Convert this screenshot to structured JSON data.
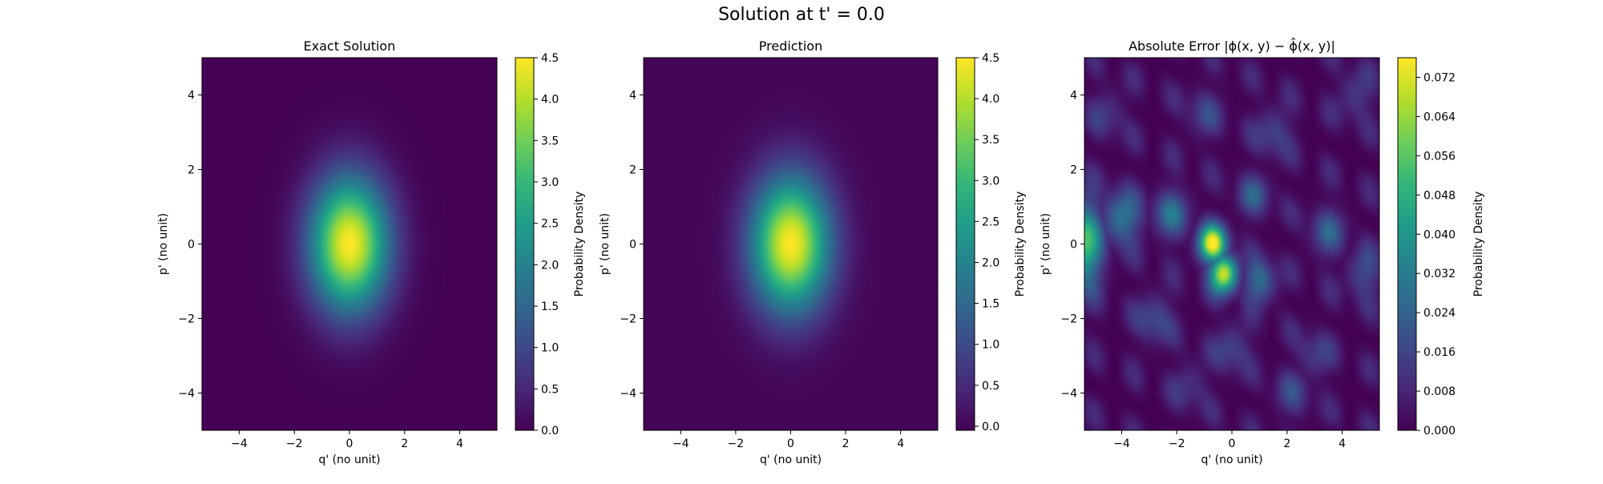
{
  "figure": {
    "suptitle": "Solution at t' = 0.0"
  },
  "colors": {
    "viridis": [
      "#440154",
      "#482878",
      "#3e4989",
      "#31688e",
      "#26828e",
      "#1f9e89",
      "#35b779",
      "#6ece58",
      "#b5de2b",
      "#fde725"
    ]
  },
  "chart_data": [
    {
      "type": "heatmap",
      "title": "Exact Solution",
      "xlabel": "q' (no unit)",
      "ylabel": "p' (no unit)",
      "xlim": [
        -5.35,
        5.35
      ],
      "ylim": [
        -5,
        5
      ],
      "xticks": [
        "−4",
        "−2",
        "0",
        "2",
        "4"
      ],
      "yticks": [
        "−4",
        "−2",
        "0",
        "2",
        "4"
      ],
      "colorbar": {
        "label": "Probability Density",
        "range": [
          0.0,
          4.5
        ],
        "ticks": [
          "0.0",
          "0.5",
          "1.0",
          "1.5",
          "2.0",
          "2.5",
          "3.0",
          "3.5",
          "4.0",
          "4.5"
        ]
      },
      "field": {
        "kind": "gaussian",
        "peak": 4.5,
        "center": [
          0,
          0
        ],
        "sigma": [
          1.0,
          1.25
        ]
      }
    },
    {
      "type": "heatmap",
      "title": "Prediction",
      "xlabel": "q' (no unit)",
      "ylabel": "p' (no unit)",
      "xlim": [
        -5.35,
        5.35
      ],
      "ylim": [
        -5,
        5
      ],
      "xticks": [
        "−4",
        "−2",
        "0",
        "2",
        "4"
      ],
      "yticks": [
        "−4",
        "−2",
        "0",
        "2",
        "4"
      ],
      "colorbar": {
        "label": "Probability Density",
        "range": [
          -0.05,
          4.5
        ],
        "ticks": [
          "0.0",
          "0.5",
          "1.0",
          "1.5",
          "2.0",
          "2.5",
          "3.0",
          "3.5",
          "4.0",
          "4.5"
        ]
      },
      "field": {
        "kind": "gaussian",
        "peak": 4.5,
        "center": [
          0,
          0
        ],
        "sigma": [
          1.0,
          1.25
        ]
      }
    },
    {
      "type": "heatmap",
      "title": "Absolute Error |ϕ(x, y) − ϕ̂(x, y)|",
      "xlabel": "q' (no unit)",
      "ylabel": "p' (no unit)",
      "xlim": [
        -5.35,
        5.35
      ],
      "ylim": [
        -5,
        5
      ],
      "xticks": [
        "−4",
        "−2",
        "0",
        "2",
        "4"
      ],
      "yticks": [
        "−4",
        "−2",
        "0",
        "2",
        "4"
      ],
      "colorbar": {
        "label": "Probability Density",
        "range": [
          0.0,
          0.076
        ],
        "ticks": [
          "0.000",
          "0.008",
          "0.016",
          "0.024",
          "0.032",
          "0.040",
          "0.048",
          "0.056",
          "0.064",
          "0.072"
        ]
      },
      "field": {
        "kind": "blobs",
        "blobs": [
          {
            "center": [
              -0.7,
              0.0
            ],
            "sigma": [
              0.35,
              0.35
            ],
            "value": 0.074
          },
          {
            "center": [
              -0.3,
              -0.8
            ],
            "sigma": [
              0.35,
              0.35
            ],
            "value": 0.07
          },
          {
            "center": [
              -5.35,
              0.0
            ],
            "sigma": [
              0.45,
              0.8
            ],
            "value": 0.05
          },
          {
            "center": [
              -4.0,
              0.7
            ],
            "sigma": [
              0.5,
              0.5
            ],
            "value": 0.028
          },
          {
            "center": [
              -2.2,
              0.8
            ],
            "sigma": [
              0.45,
              0.45
            ],
            "value": 0.024
          },
          {
            "center": [
              1.0,
              -1.0
            ],
            "sigma": [
              0.4,
              0.4
            ],
            "value": 0.026
          },
          {
            "center": [
              0.8,
              1.3
            ],
            "sigma": [
              0.4,
              0.4
            ],
            "value": 0.018
          },
          {
            "center": [
              -2.8,
              -2.0
            ],
            "sigma": [
              0.45,
              0.45
            ],
            "value": 0.016
          },
          {
            "center": [
              3.5,
              0.3
            ],
            "sigma": [
              0.45,
              0.45
            ],
            "value": 0.018
          },
          {
            "center": [
              4.8,
              -0.8
            ],
            "sigma": [
              0.45,
              0.45
            ],
            "value": 0.016
          },
          {
            "center": [
              1.5,
              3.0
            ],
            "sigma": [
              0.45,
              0.45
            ],
            "value": 0.014
          },
          {
            "center": [
              -1.0,
              3.5
            ],
            "sigma": [
              0.45,
              0.45
            ],
            "value": 0.012
          },
          {
            "center": [
              3.0,
              -3.0
            ],
            "sigma": [
              0.45,
              0.45
            ],
            "value": 0.012
          },
          {
            "center": [
              -1.5,
              -3.8
            ],
            "sigma": [
              0.45,
              0.45
            ],
            "value": 0.01
          },
          {
            "center": [
              2.2,
              -4.0
            ],
            "sigma": [
              0.45,
              0.45
            ],
            "value": 0.012
          },
          {
            "center": [
              4.5,
              4.0
            ],
            "sigma": [
              0.45,
              0.45
            ],
            "value": 0.012
          },
          {
            "center": [
              -4.5,
              3.5
            ],
            "sigma": [
              0.45,
              0.45
            ],
            "value": 0.01
          },
          {
            "center": [
              0.0,
              -2.8
            ],
            "sigma": [
              0.45,
              0.45
            ],
            "value": 0.014
          }
        ],
        "ripple": {
          "amplitude": 0.01,
          "frequency": 2.2
        }
      }
    }
  ]
}
